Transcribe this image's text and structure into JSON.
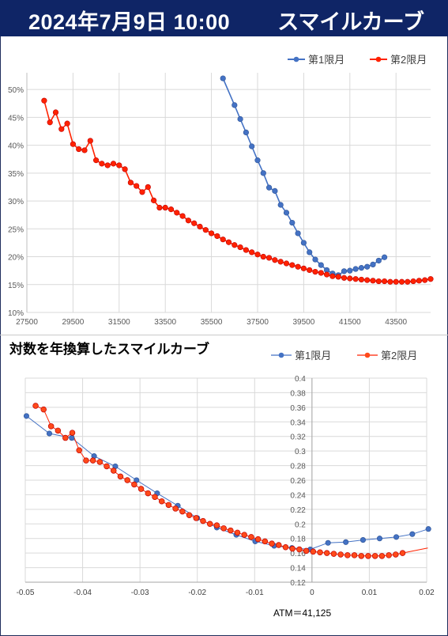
{
  "header": {
    "date": "2024年7月9日 10:00",
    "title": "スマイルカーブ"
  },
  "chart_data": [
    {
      "type": "line",
      "title": "",
      "xlabel": "",
      "ylabel": "",
      "xlim": [
        27500,
        45000
      ],
      "ylim": [
        0.1,
        0.53
      ],
      "x_ticks": [
        27500,
        29500,
        31500,
        33500,
        35500,
        37500,
        39500,
        41500,
        43500
      ],
      "y_ticks": [
        0.1,
        0.15,
        0.2,
        0.25,
        0.3,
        0.35,
        0.4,
        0.45,
        0.5
      ],
      "y_tick_labels": [
        "10%",
        "15%",
        "20%",
        "25%",
        "30%",
        "35%",
        "40%",
        "45%",
        "50%"
      ],
      "grid": true,
      "legend": "top-right",
      "series": [
        {
          "name": "第1限月",
          "color": "#4472c4",
          "x": [
            36000,
            36500,
            36750,
            37000,
            37250,
            37500,
            37750,
            38000,
            38250,
            38500,
            38750,
            39000,
            39250,
            39500,
            39750,
            40000,
            40250,
            40500,
            40750,
            41000,
            41250,
            41500,
            41750,
            42000,
            42250,
            42500,
            42750,
            43000
          ],
          "y": [
            0.52,
            0.472,
            0.447,
            0.423,
            0.398,
            0.373,
            0.35,
            0.324,
            0.318,
            0.293,
            0.279,
            0.261,
            0.242,
            0.225,
            0.208,
            0.195,
            0.185,
            0.176,
            0.17,
            0.167,
            0.174,
            0.175,
            0.178,
            0.18,
            0.182,
            0.186,
            0.193,
            0.199
          ]
        },
        {
          "name": "第2限月",
          "color": "#ff2200",
          "x": [
            28250,
            28500,
            28750,
            29000,
            29250,
            29500,
            29750,
            30000,
            30250,
            30500,
            30750,
            31000,
            31250,
            31500,
            31750,
            32000,
            32250,
            32500,
            32750,
            33000,
            33250,
            33500,
            33750,
            34000,
            34250,
            34500,
            34750,
            35000,
            35250,
            35500,
            35750,
            36000,
            36250,
            36500,
            36750,
            37000,
            37250,
            37500,
            37750,
            38000,
            38250,
            38500,
            38750,
            39000,
            39250,
            39500,
            39750,
            40000,
            40250,
            40500,
            40750,
            41000,
            41250,
            41500,
            41750,
            42000,
            42250,
            42500,
            42750,
            43000,
            43250,
            43500,
            43750,
            44000,
            44250,
            44500,
            44750,
            45000
          ],
          "y": [
            0.48,
            0.441,
            0.459,
            0.429,
            0.439,
            0.402,
            0.393,
            0.391,
            0.408,
            0.373,
            0.367,
            0.364,
            0.367,
            0.364,
            0.357,
            0.333,
            0.327,
            0.316,
            0.325,
            0.301,
            0.288,
            0.288,
            0.285,
            0.279,
            0.273,
            0.265,
            0.26,
            0.254,
            0.248,
            0.242,
            0.237,
            0.231,
            0.226,
            0.221,
            0.217,
            0.212,
            0.208,
            0.204,
            0.2,
            0.198,
            0.194,
            0.191,
            0.188,
            0.185,
            0.182,
            0.179,
            0.176,
            0.173,
            0.171,
            0.168,
            0.165,
            0.164,
            0.162,
            0.161,
            0.16,
            0.159,
            0.158,
            0.157,
            0.156,
            0.156,
            0.155,
            0.155,
            0.155,
            0.155,
            0.156,
            0.157,
            0.158,
            0.16
          ]
        }
      ]
    },
    {
      "type": "line",
      "title": "対数を年換算したスマイルカーブ",
      "xlabel": "",
      "ylabel": "",
      "xlim": [
        -0.05,
        0.02
      ],
      "ylim": [
        0.12,
        0.4
      ],
      "x_ticks": [
        -0.05,
        -0.04,
        -0.03,
        -0.02,
        -0.01,
        0,
        0.01,
        0.02
      ],
      "x_tick_labels": [
        "-0.05",
        "-0.04",
        "-0.03",
        "-0.02",
        "-0.01",
        "0",
        "0.01",
        "0.02"
      ],
      "y_ticks": [
        0.12,
        0.14,
        0.16,
        0.18,
        0.2,
        0.22,
        0.24,
        0.26,
        0.28,
        0.3,
        0.32,
        0.34,
        0.36,
        0.38,
        0.4
      ],
      "y_tick_labels": [
        "0.12",
        "0.14",
        "0.16",
        "0.18",
        "0.2",
        "0.22",
        "0.24",
        "0.26",
        "0.28",
        "0.3",
        "0.32",
        "0.34",
        "0.36",
        "0.38",
        "0.4"
      ],
      "grid": true,
      "legend": "top-right",
      "annotation": "ATM＝41,125",
      "series": [
        {
          "name": "第1限月",
          "color": "#4472c4",
          "marker_every": 2,
          "x": [
            -0.0498,
            -0.0458,
            -0.0419,
            -0.038,
            -0.0343,
            -0.0306,
            -0.027,
            -0.0234,
            -0.02,
            -0.0166,
            -0.0132,
            -0.0099,
            -0.0066,
            -0.0035,
            -0.0003,
            0.0028,
            0.0059,
            0.0089,
            0.0118,
            0.0147,
            0.0175,
            0.0203
          ],
          "y": [
            0.348,
            0.324,
            0.318,
            0.293,
            0.279,
            0.26,
            0.242,
            0.225,
            0.208,
            0.195,
            0.185,
            0.176,
            0.17,
            0.167,
            0.165,
            0.174,
            0.175,
            0.178,
            0.18,
            0.182,
            0.186,
            0.193
          ]
        },
        {
          "name": "第2限月",
          "color": "#ff2200",
          "x": [
            -0.0482,
            -0.0468,
            -0.0455,
            -0.0443,
            -0.043,
            -0.0418,
            -0.0406,
            -0.0394,
            -0.0382,
            -0.037,
            -0.0358,
            -0.0346,
            -0.0334,
            -0.0322,
            -0.031,
            -0.0298,
            -0.0286,
            -0.0274,
            -0.0262,
            -0.025,
            -0.0238,
            -0.0226,
            -0.0214,
            -0.0202,
            -0.019,
            -0.0178,
            -0.0166,
            -0.0154,
            -0.0142,
            -0.013,
            -0.0118,
            -0.0106,
            -0.0094,
            -0.0082,
            -0.007,
            -0.0058,
            -0.0046,
            -0.0034,
            -0.0022,
            -0.001,
            0.0002,
            0.0014,
            0.0026,
            0.0038,
            0.005,
            0.0062,
            0.0074,
            0.0086,
            0.0098,
            0.011,
            0.0122,
            0.0134,
            0.0146,
            0.0158,
            0.0202
          ],
          "y": [
            0.362,
            0.357,
            0.334,
            0.328,
            0.318,
            0.325,
            0.301,
            0.287,
            0.287,
            0.285,
            0.279,
            0.273,
            0.265,
            0.26,
            0.254,
            0.248,
            0.242,
            0.237,
            0.231,
            0.226,
            0.221,
            0.217,
            0.212,
            0.208,
            0.204,
            0.2,
            0.198,
            0.194,
            0.191,
            0.188,
            0.185,
            0.182,
            0.179,
            0.176,
            0.173,
            0.171,
            0.168,
            0.166,
            0.165,
            0.163,
            0.162,
            0.161,
            0.16,
            0.159,
            0.158,
            0.157,
            0.157,
            0.156,
            0.156,
            0.156,
            0.156,
            0.157,
            0.158,
            0.16,
            0.167
          ]
        }
      ]
    }
  ]
}
